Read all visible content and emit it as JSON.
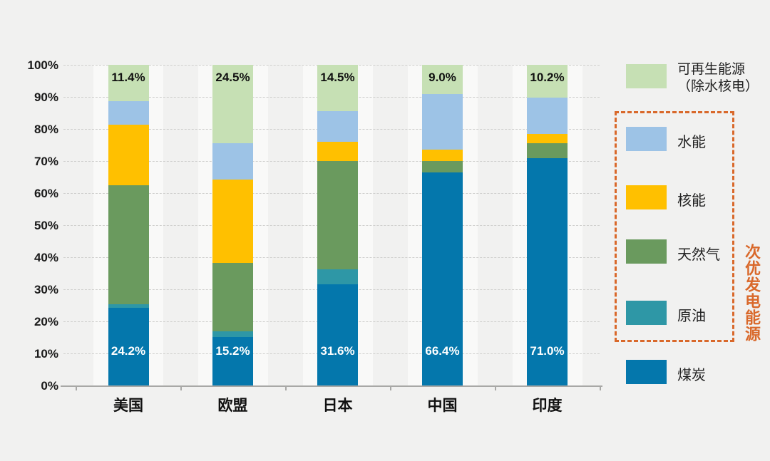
{
  "accent_colors": {
    "background": "#f1f1f0",
    "grid": "#cfcfcd",
    "axis": "#a8a8a6",
    "group_box_orange": "#d9682a",
    "bar_label_white": "#ffffff",
    "text_dark": "#111111"
  },
  "chart_data": {
    "type": "bar",
    "subtype": "stacked-100-percent",
    "title": "",
    "xlabel": "",
    "ylabel": "",
    "ylim": [
      0,
      100
    ],
    "grid": "horizontal-dashed",
    "y_ticks": [
      "0%",
      "10%",
      "20%",
      "30%",
      "40%",
      "50%",
      "60%",
      "70%",
      "80%",
      "90%",
      "100%"
    ],
    "categories": [
      "美国",
      "欧盟",
      "日本",
      "中国",
      "印度"
    ],
    "series": [
      {
        "name": "煤炭",
        "color": "#0477ac",
        "values": [
          24.2,
          15.2,
          31.6,
          66.4,
          71.0
        ]
      },
      {
        "name": "原油",
        "color": "#2e97a6",
        "values": [
          1.1,
          1.8,
          4.6,
          0.0,
          0.0
        ]
      },
      {
        "name": "天然气",
        "color": "#6a9a5e",
        "values": [
          37.2,
          21.2,
          33.9,
          3.6,
          4.5
        ]
      },
      {
        "name": "核能",
        "color": "#ffc000",
        "values": [
          18.8,
          26.0,
          6.0,
          3.5,
          3.0
        ]
      },
      {
        "name": "水能",
        "color": "#9dc3e6",
        "values": [
          7.3,
          11.3,
          9.4,
          17.5,
          11.3
        ]
      },
      {
        "name": "可再生能源（除水核电）",
        "color": "#c6e0b4",
        "values": [
          11.4,
          24.5,
          14.5,
          9.0,
          10.2
        ]
      }
    ],
    "top_segment_labels": [
      "11.4%",
      "24.5%",
      "14.5%",
      "9.0%",
      "10.2%"
    ],
    "coal_segment_labels": [
      "24.2%",
      "15.2%",
      "31.6%",
      "66.4%",
      "71.0%"
    ],
    "legend_position": "right"
  },
  "legend": {
    "renewable": {
      "label_line1": "可再生能源",
      "label_line2": "（除水核电）",
      "color": "#c6e0b4"
    },
    "hydro": {
      "label": "水能",
      "color": "#9dc3e6"
    },
    "nuclear": {
      "label": "核能",
      "color": "#ffc000"
    },
    "gas": {
      "label": "天然气",
      "color": "#6a9a5e"
    },
    "oil": {
      "label": "原油",
      "color": "#2e97a6"
    },
    "coal": {
      "label": "煤炭",
      "color": "#0477ac"
    },
    "group_label": "次优发电能源"
  }
}
